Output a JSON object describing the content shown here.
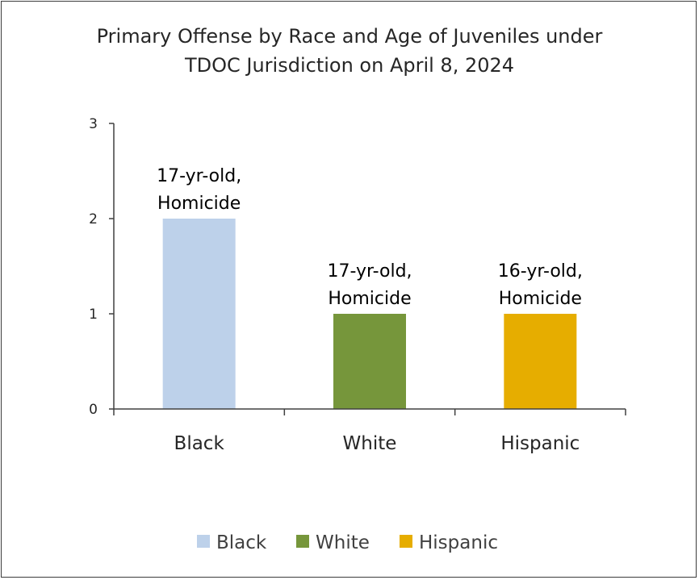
{
  "chart_data": {
    "type": "bar",
    "title_lines": [
      "Primary Offense by Race and Age of Juveniles under",
      "TDOC Jurisdiction on April 8, 2024"
    ],
    "categories": [
      "Black",
      "White",
      "Hispanic"
    ],
    "values": [
      2,
      1,
      1
    ],
    "data_labels": [
      [
        "17-yr-old,",
        "Homicide"
      ],
      [
        "17-yr-old,",
        "Homicide"
      ],
      [
        "16-yr-old,",
        "Homicide"
      ]
    ],
    "colors": [
      "#bdd1ea",
      "#76963b",
      "#e6ad00"
    ],
    "ylim": [
      0,
      3
    ],
    "yticks": [
      0,
      1,
      2,
      3
    ],
    "legend": {
      "placement": "bottom",
      "entries": [
        {
          "label": "Black",
          "color": "#bdd1ea"
        },
        {
          "label": "White",
          "color": "#76963b"
        },
        {
          "label": "Hispanic",
          "color": "#e6ad00"
        }
      ]
    },
    "grid": false
  }
}
